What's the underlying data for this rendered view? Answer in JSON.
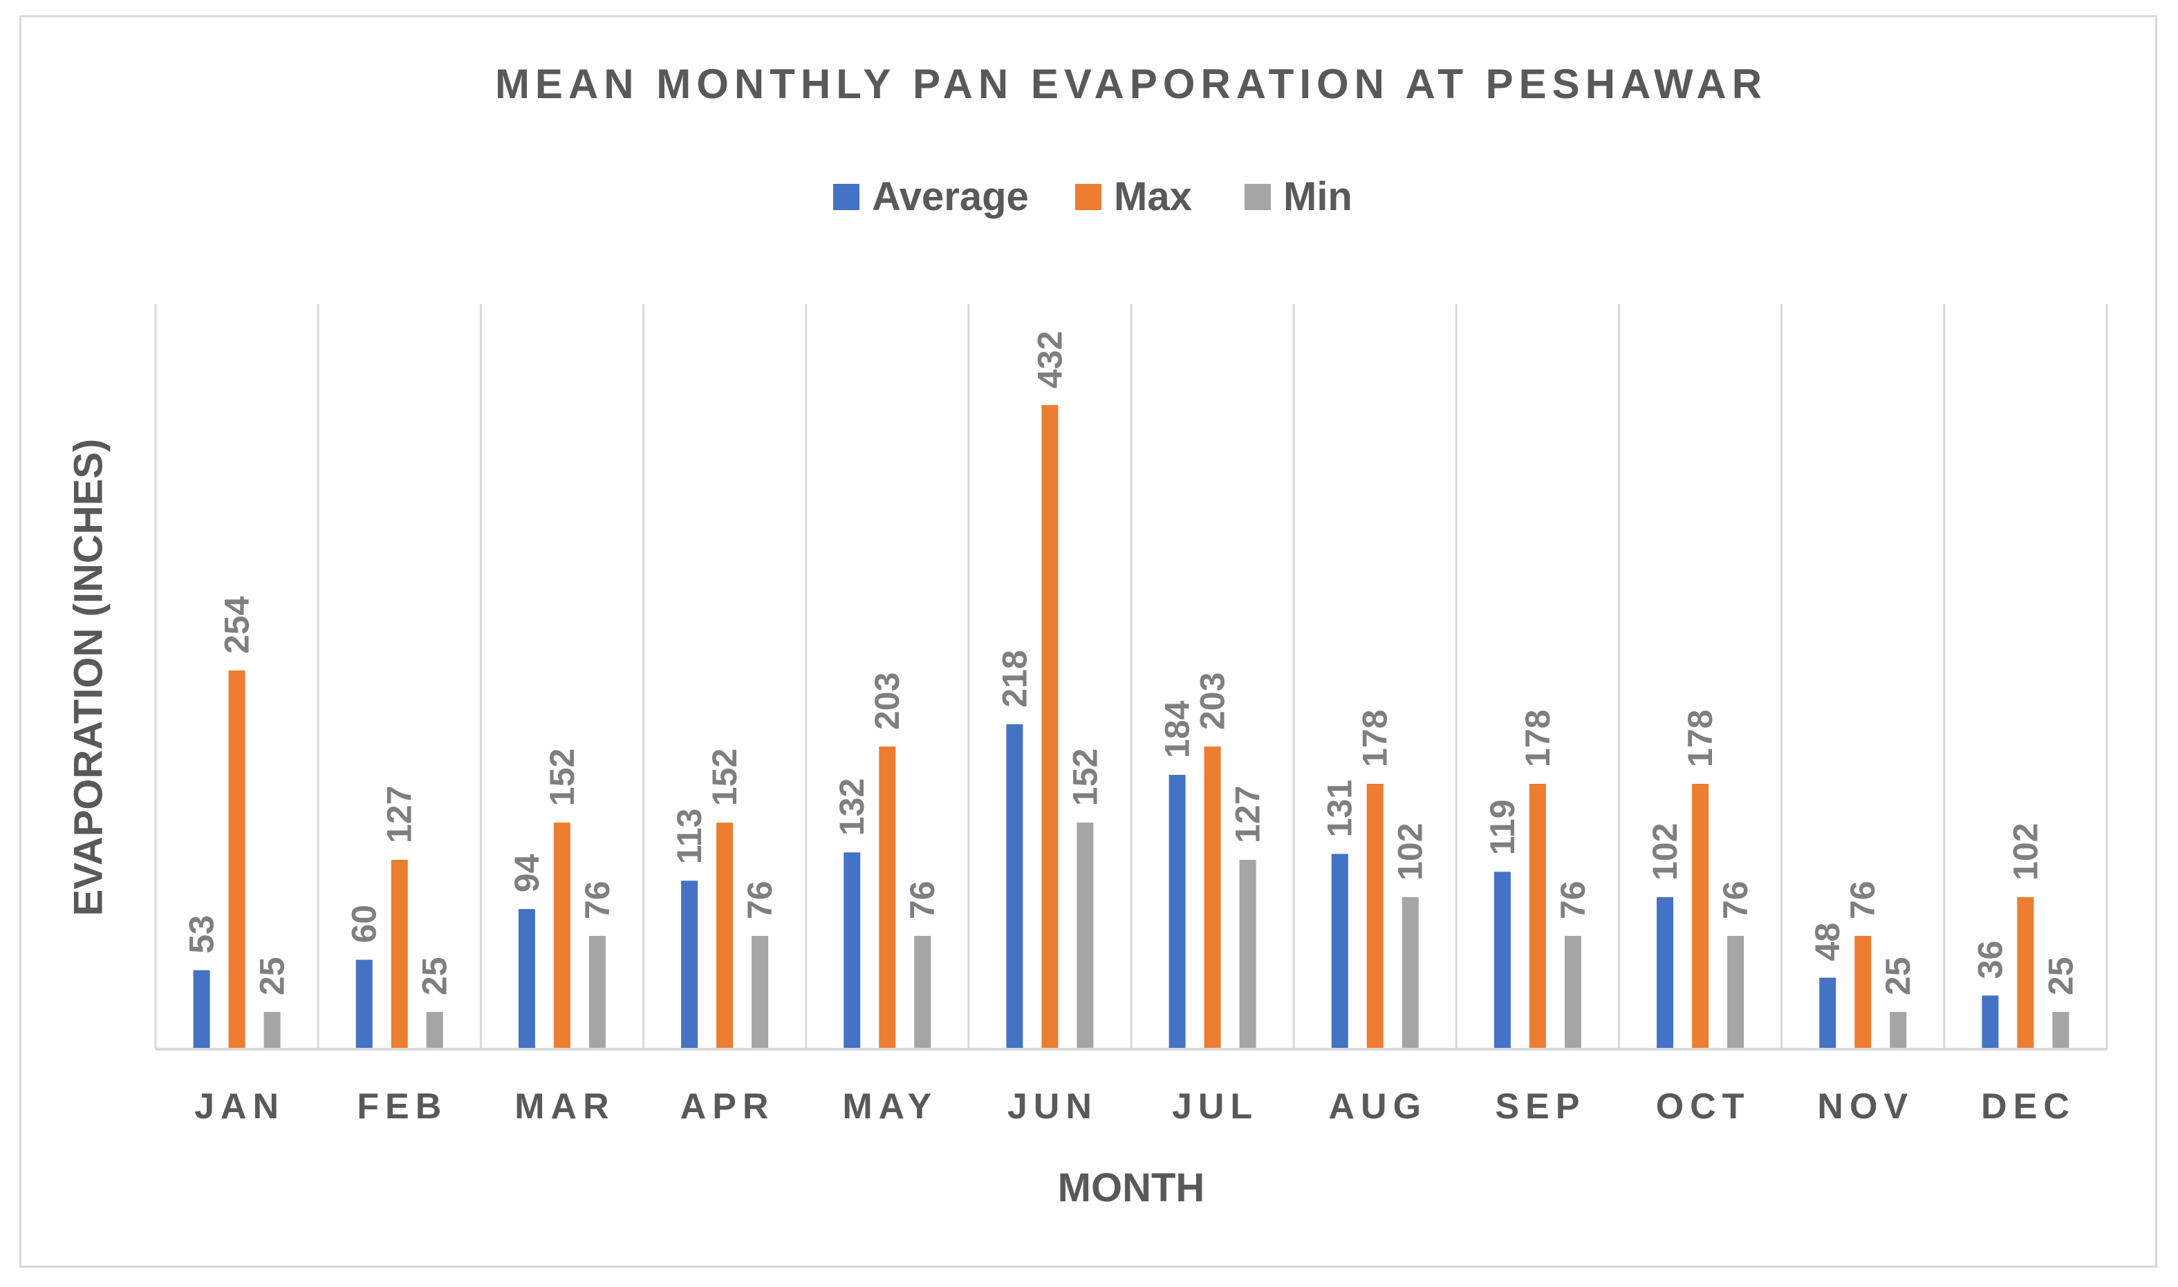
{
  "chart_data": {
    "type": "bar",
    "title": "MEAN MONTHLY PAN EVAPORATION AT PESHAWAR",
    "xlabel": "MONTH",
    "ylabel": "EVAPORATION (INCHES)",
    "categories": [
      "JAN",
      "FEB",
      "MAR",
      "APR",
      "MAY",
      "JUN",
      "JUL",
      "AUG",
      "SEP",
      "OCT",
      "NOV",
      "DEC"
    ],
    "series": [
      {
        "name": "Average",
        "color": "#4472c4",
        "values": [
          53,
          60,
          94,
          113,
          132,
          218,
          184,
          131,
          119,
          102,
          48,
          36
        ]
      },
      {
        "name": "Max",
        "color": "#ed7d31",
        "values": [
          254,
          127,
          152,
          152,
          203,
          432,
          203,
          178,
          178,
          178,
          76,
          102
        ]
      },
      {
        "name": "Min",
        "color": "#a5a5a5",
        "values": [
          25,
          25,
          76,
          76,
          76,
          152,
          127,
          102,
          76,
          76,
          25,
          25
        ]
      }
    ],
    "ylim": [
      0,
      500
    ],
    "grid": "vertical",
    "legend": "top-center",
    "data_labels": true
  }
}
